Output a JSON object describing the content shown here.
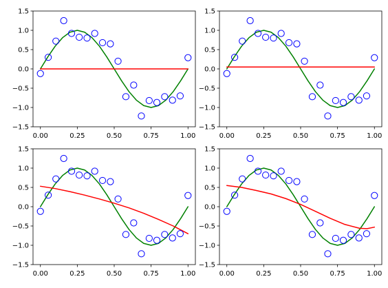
{
  "chart_data": [
    {
      "type": "scatter",
      "title": "",
      "xlabel": "",
      "ylabel": "",
      "xlim": [
        -0.05,
        1.05
      ],
      "ylim": [
        -1.5,
        1.5
      ],
      "xticks": [
        "0.00",
        "0.25",
        "0.50",
        "0.75",
        "1.00"
      ],
      "yticks": [
        "1.5",
        "1.0",
        "0.5",
        "0.0",
        "-0.5",
        "-1.0",
        "-1.5"
      ],
      "grid": false,
      "series": [
        {
          "kind": "points",
          "x": [
            0.0,
            0.053,
            0.105,
            0.158,
            0.211,
            0.263,
            0.316,
            0.368,
            0.421,
            0.474,
            0.526,
            0.579,
            0.632,
            0.684,
            0.737,
            0.789,
            0.842,
            0.895,
            0.947,
            1.0
          ],
          "y": [
            -0.12,
            0.3,
            0.72,
            1.25,
            0.92,
            0.82,
            0.8,
            0.92,
            0.68,
            0.65,
            0.2,
            -0.72,
            -0.42,
            -1.22,
            -0.82,
            -0.87,
            -0.72,
            -0.81,
            -0.7,
            0.29
          ]
        },
        {
          "kind": "line",
          "x": [
            0.0,
            0.05,
            0.1,
            0.15,
            0.2,
            0.25,
            0.3,
            0.35,
            0.4,
            0.45,
            0.5,
            0.55,
            0.6,
            0.65,
            0.7,
            0.75,
            0.8,
            0.85,
            0.9,
            0.95,
            1.0
          ],
          "y": [
            0.0,
            0.309,
            0.588,
            0.809,
            0.951,
            1.0,
            0.951,
            0.809,
            0.588,
            0.309,
            0.0,
            -0.309,
            -0.588,
            -0.809,
            -0.951,
            -1.0,
            -0.951,
            -0.809,
            -0.588,
            -0.309,
            0.0
          ]
        },
        {
          "kind": "line",
          "x": [
            0.0,
            1.0
          ],
          "y": [
            0.0,
            0.0
          ]
        }
      ]
    },
    {
      "type": "scatter",
      "title": "",
      "xlabel": "",
      "ylabel": "",
      "xlim": [
        -0.05,
        1.05
      ],
      "ylim": [
        -1.5,
        1.5
      ],
      "xticks": [
        "0.00",
        "0.25",
        "0.50",
        "0.75",
        "1.00"
      ],
      "yticks": [
        "1.5",
        "1.0",
        "0.5",
        "0.0",
        "-0.5",
        "-1.0",
        "-1.5"
      ],
      "grid": false,
      "series": [
        {
          "kind": "points",
          "x": [
            0.0,
            0.053,
            0.105,
            0.158,
            0.211,
            0.263,
            0.316,
            0.368,
            0.421,
            0.474,
            0.526,
            0.579,
            0.632,
            0.684,
            0.737,
            0.789,
            0.842,
            0.895,
            0.947,
            1.0
          ],
          "y": [
            -0.12,
            0.3,
            0.72,
            1.25,
            0.92,
            0.82,
            0.8,
            0.92,
            0.68,
            0.65,
            0.2,
            -0.72,
            -0.42,
            -1.22,
            -0.82,
            -0.87,
            -0.72,
            -0.81,
            -0.7,
            0.29
          ]
        },
        {
          "kind": "line",
          "x": [
            0.0,
            0.05,
            0.1,
            0.15,
            0.2,
            0.25,
            0.3,
            0.35,
            0.4,
            0.45,
            0.5,
            0.55,
            0.6,
            0.65,
            0.7,
            0.75,
            0.8,
            0.85,
            0.9,
            0.95,
            1.0
          ],
          "y": [
            0.0,
            0.309,
            0.588,
            0.809,
            0.951,
            1.0,
            0.951,
            0.809,
            0.588,
            0.309,
            0.0,
            -0.309,
            -0.588,
            -0.809,
            -0.951,
            -1.0,
            -0.951,
            -0.809,
            -0.588,
            -0.309,
            0.0
          ]
        },
        {
          "kind": "line",
          "x": [
            0.0,
            1.0
          ],
          "y": [
            0.05,
            0.05
          ]
        }
      ]
    },
    {
      "type": "scatter",
      "title": "",
      "xlabel": "",
      "ylabel": "",
      "xlim": [
        -0.05,
        1.05
      ],
      "ylim": [
        -1.5,
        1.5
      ],
      "xticks": [
        "0.00",
        "0.25",
        "0.50",
        "0.75",
        "1.00"
      ],
      "yticks": [
        "1.5",
        "1.0",
        "0.5",
        "0.0",
        "-0.5",
        "-1.0",
        "-1.5"
      ],
      "grid": false,
      "series": [
        {
          "kind": "points",
          "x": [
            0.0,
            0.053,
            0.105,
            0.158,
            0.211,
            0.263,
            0.316,
            0.368,
            0.421,
            0.474,
            0.526,
            0.579,
            0.632,
            0.684,
            0.737,
            0.789,
            0.842,
            0.895,
            0.947,
            1.0
          ],
          "y": [
            -0.12,
            0.3,
            0.72,
            1.25,
            0.92,
            0.82,
            0.8,
            0.92,
            0.68,
            0.65,
            0.2,
            -0.72,
            -0.42,
            -1.22,
            -0.82,
            -0.87,
            -0.72,
            -0.81,
            -0.7,
            0.29
          ]
        },
        {
          "kind": "line",
          "x": [
            0.0,
            0.05,
            0.1,
            0.15,
            0.2,
            0.25,
            0.3,
            0.35,
            0.4,
            0.45,
            0.5,
            0.55,
            0.6,
            0.65,
            0.7,
            0.75,
            0.8,
            0.85,
            0.9,
            0.95,
            1.0
          ],
          "y": [
            0.0,
            0.309,
            0.588,
            0.809,
            0.951,
            1.0,
            0.951,
            0.809,
            0.588,
            0.309,
            0.0,
            -0.309,
            -0.588,
            -0.809,
            -0.951,
            -1.0,
            -0.951,
            -0.809,
            -0.588,
            -0.309,
            0.0
          ]
        },
        {
          "kind": "line",
          "x": [
            0.0,
            0.1,
            0.2,
            0.3,
            0.4,
            0.5,
            0.6,
            0.7,
            0.8,
            0.9,
            1.0
          ],
          "y": [
            0.53,
            0.47,
            0.39,
            0.3,
            0.2,
            0.09,
            -0.03,
            -0.17,
            -0.33,
            -0.5,
            -0.7
          ]
        }
      ]
    },
    {
      "type": "scatter",
      "title": "",
      "xlabel": "",
      "ylabel": "",
      "xlim": [
        -0.05,
        1.05
      ],
      "ylim": [
        -1.5,
        1.5
      ],
      "xticks": [
        "0.00",
        "0.25",
        "0.50",
        "0.75",
        "1.00"
      ],
      "yticks": [
        "1.5",
        "1.0",
        "0.5",
        "0.0",
        "-0.5",
        "-1.0",
        "-1.5"
      ],
      "grid": false,
      "series": [
        {
          "kind": "points",
          "x": [
            0.0,
            0.053,
            0.105,
            0.158,
            0.211,
            0.263,
            0.316,
            0.368,
            0.421,
            0.474,
            0.526,
            0.579,
            0.632,
            0.684,
            0.737,
            0.789,
            0.842,
            0.895,
            0.947,
            1.0
          ],
          "y": [
            -0.12,
            0.3,
            0.72,
            1.25,
            0.92,
            0.82,
            0.8,
            0.92,
            0.68,
            0.65,
            0.2,
            -0.72,
            -0.42,
            -1.22,
            -0.82,
            -0.87,
            -0.72,
            -0.81,
            -0.7,
            0.29
          ]
        },
        {
          "kind": "line",
          "x": [
            0.0,
            0.05,
            0.1,
            0.15,
            0.2,
            0.25,
            0.3,
            0.35,
            0.4,
            0.45,
            0.5,
            0.55,
            0.6,
            0.65,
            0.7,
            0.75,
            0.8,
            0.85,
            0.9,
            0.95,
            1.0
          ],
          "y": [
            0.0,
            0.309,
            0.588,
            0.809,
            0.951,
            1.0,
            0.951,
            0.809,
            0.588,
            0.309,
            0.0,
            -0.309,
            -0.588,
            -0.809,
            -0.951,
            -1.0,
            -0.951,
            -0.809,
            -0.588,
            -0.309,
            0.0
          ]
        },
        {
          "kind": "line",
          "x": [
            0.0,
            0.1,
            0.2,
            0.3,
            0.4,
            0.5,
            0.6,
            0.7,
            0.8,
            0.9,
            0.95,
            1.0
          ],
          "y": [
            0.55,
            0.5,
            0.42,
            0.33,
            0.21,
            0.06,
            -0.12,
            -0.3,
            -0.46,
            -0.56,
            -0.57,
            -0.53
          ]
        }
      ]
    }
  ],
  "colors": {
    "points_edge": "#0000ff",
    "truth_line": "#008000",
    "fit_line": "#ff0000",
    "axes": "#000000",
    "background": "#ffffff"
  }
}
